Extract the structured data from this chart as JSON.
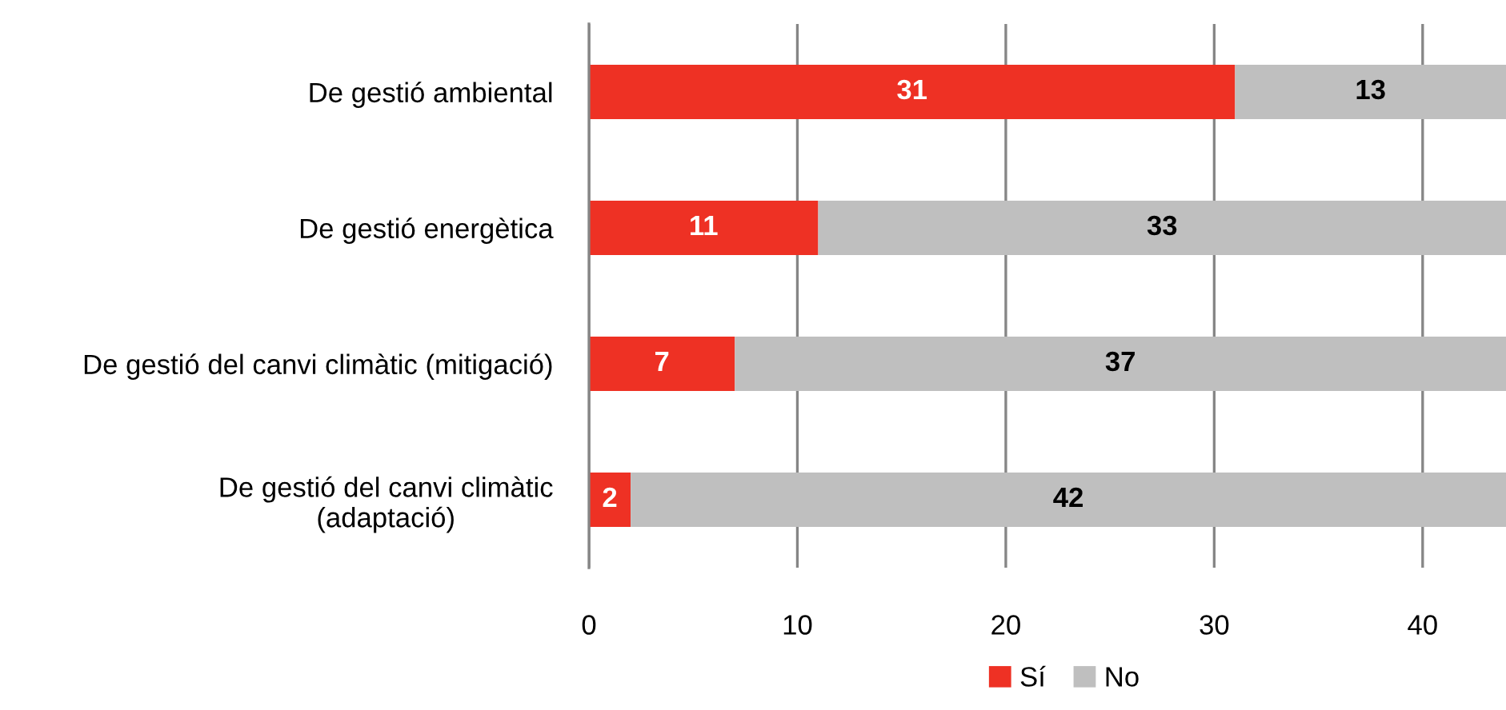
{
  "chart_data": {
    "type": "bar",
    "orientation": "horizontal",
    "stacked": true,
    "categories": [
      "De gestió ambiental",
      "De gestió energètica",
      "De gestió del canvi climàtic (mitigació)",
      "De gestió del canvi climàtic\n(adaptació)"
    ],
    "series": [
      {
        "name": "Sí",
        "color": "#ee3124",
        "values": [
          31,
          11,
          7,
          2
        ]
      },
      {
        "name": "No",
        "color": "#bfbfbf",
        "values": [
          13,
          33,
          37,
          42
        ]
      }
    ],
    "xlim": [
      0,
      44
    ],
    "xticks": [
      0,
      10,
      20,
      30,
      40
    ],
    "grid": "x",
    "legend": "bottom",
    "data_labels": true
  }
}
